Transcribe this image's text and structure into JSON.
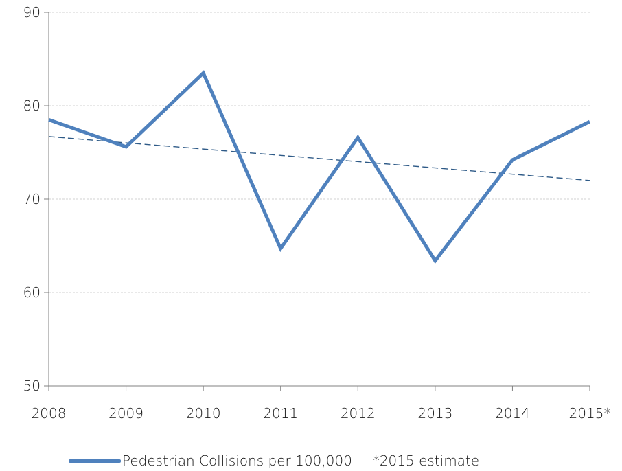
{
  "chart_data": {
    "type": "line",
    "title": "",
    "xlabel": "",
    "ylabel": "",
    "categories": [
      "2008",
      "2009",
      "2010",
      "2011",
      "2012",
      "2013",
      "2014",
      "2015*"
    ],
    "ylim": [
      50,
      90
    ],
    "yticks": [
      50,
      60,
      70,
      80,
      90
    ],
    "grid": true,
    "series": [
      {
        "name": "Pedestrian Collisions per 100,000",
        "values": [
          78.5,
          75.6,
          83.5,
          64.7,
          76.6,
          63.4,
          74.2,
          78.3
        ],
        "color": "#4f81bd"
      }
    ],
    "trendline": {
      "style": "dashed",
      "color": "#2e5a87",
      "start_value": 76.7,
      "end_value": 72.0
    },
    "legend_position": "bottom",
    "annotation": "*2015 estimate"
  }
}
